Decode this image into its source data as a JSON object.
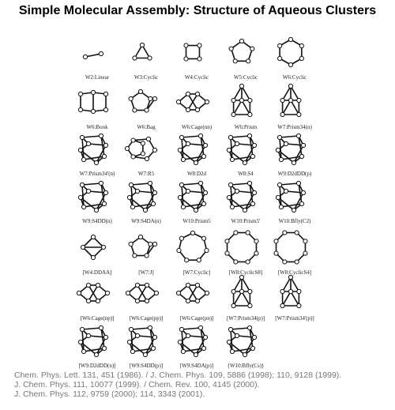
{
  "title": "Simple Molecular Assembly: Structure of Aqueous Clusters",
  "clusters": [
    {
      "label": "W2:Linear",
      "shape": "linear"
    },
    {
      "label": "W3:Cyclic",
      "shape": "ring3"
    },
    {
      "label": "W4:Cyclic",
      "shape": "ring4"
    },
    {
      "label": "W5:Cyclic",
      "shape": "ring5"
    },
    {
      "label": "W6:Cyclic",
      "shape": "ring6"
    },
    {
      "label": "W6:Book",
      "shape": "book"
    },
    {
      "label": "W6:Bag",
      "shape": "bag"
    },
    {
      "label": "W6:Cage(nn)",
      "shape": "cageflat"
    },
    {
      "label": "W6:Prism",
      "shape": "prism"
    },
    {
      "label": "W7:Prism34(n)",
      "shape": "prism"
    },
    {
      "label": "W7:Prism34'(n)",
      "shape": "cube"
    },
    {
      "label": "W7:R5",
      "shape": "ring5pair"
    },
    {
      "label": "W8:D2d",
      "shape": "cube"
    },
    {
      "label": "W8:S4",
      "shape": "cube"
    },
    {
      "label": "W9:D2dDD(p)",
      "shape": "cube"
    },
    {
      "label": "W9:S4DD(n)",
      "shape": "cube"
    },
    {
      "label": "W9:S4DA(n)",
      "shape": "cube"
    },
    {
      "label": "W10:Prism5",
      "shape": "cube"
    },
    {
      "label": "W10:Prism5'",
      "shape": "cube"
    },
    {
      "label": "W10:Bfly(C2)",
      "shape": "cube"
    },
    {
      "label": "[W4:DDAA]",
      "shape": "diamond"
    },
    {
      "label": "[W7:J]",
      "shape": "bag"
    },
    {
      "label": "[W7:Cyclic]",
      "shape": "ring7"
    },
    {
      "label": "[W8:CyclicS8]",
      "shape": "ring8"
    },
    {
      "label": "[W8:CyclicS4]",
      "shape": "ring8"
    },
    {
      "label": "[W6:Cage(np)]",
      "shape": "cageflat"
    },
    {
      "label": "[W6:Cage(pp)]",
      "shape": "cageflat"
    },
    {
      "label": "[W6:Cage(pn)]",
      "shape": "cageflat"
    },
    {
      "label": "[W7:Prism34(p)]",
      "shape": "prism"
    },
    {
      "label": "[W7:Prism34'(p)]",
      "shape": "prism"
    },
    {
      "label": "[W9:D2dDD(n)]",
      "shape": "cube"
    },
    {
      "label": "[W9:S4DD(p)]",
      "shape": "cube"
    },
    {
      "label": "[W9:S4DA(p)]",
      "shape": "cube"
    },
    {
      "label": "{W10:Bfly(Cs)}",
      "shape": "cube"
    }
  ],
  "references": [
    "Chem. Phys. Lett. 131, 451 (1986). / J. Chem. Phys. 109, 5886 (1998); 110, 9128 (1999).",
    "J. Chem. Phys. 111, 10077 (1999). / Chem. Rev. 100, 4145 (2000).",
    "J. Chem. Phys. 112, 9759 (2000); 114, 3343 (2001)."
  ],
  "colors": {
    "bond": "#111111",
    "atom_fill": "#ffffff",
    "reference_text": "#777777"
  }
}
